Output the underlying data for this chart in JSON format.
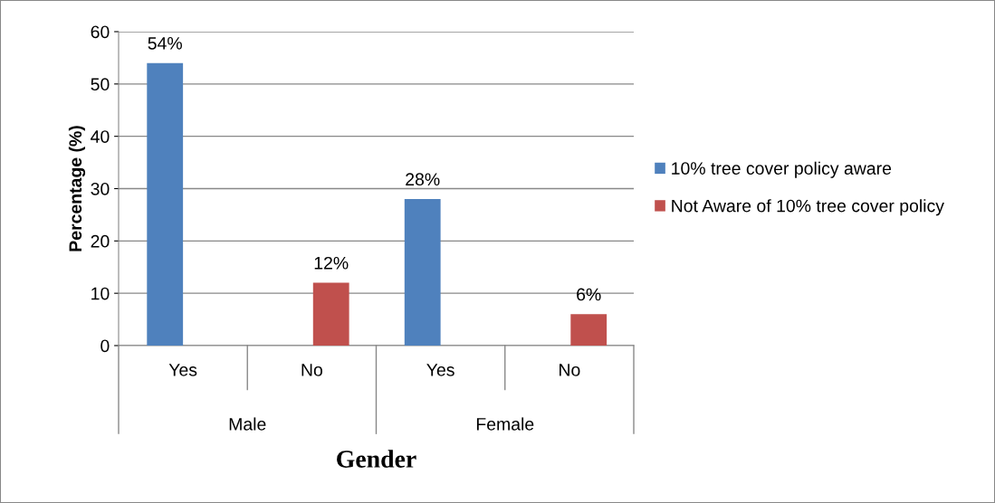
{
  "chart_data": {
    "type": "bar",
    "xlabel": "Gender",
    "ylabel": "Percentage (%)",
    "categories": [
      "Yes",
      "No",
      "Yes",
      "No"
    ],
    "series": [
      {
        "name": "10% tree cover policy aware",
        "color": "#4f81bd",
        "values": [
          54,
          null,
          28,
          null
        ],
        "value_labels": [
          "54%",
          null,
          "28%",
          null
        ]
      },
      {
        "name": "Not Aware of 10% tree cover policy",
        "color": "#c0504d",
        "values": [
          null,
          12,
          null,
          6
        ],
        "value_labels": [
          null,
          "12%",
          null,
          "6%"
        ]
      }
    ],
    "annotations": [
      "Male",
      "Female"
    ],
    "ylim": [
      0,
      60
    ],
    "yticks": [
      0,
      10,
      20,
      30,
      40,
      50,
      60
    ],
    "grid": "y",
    "legend": "right"
  }
}
